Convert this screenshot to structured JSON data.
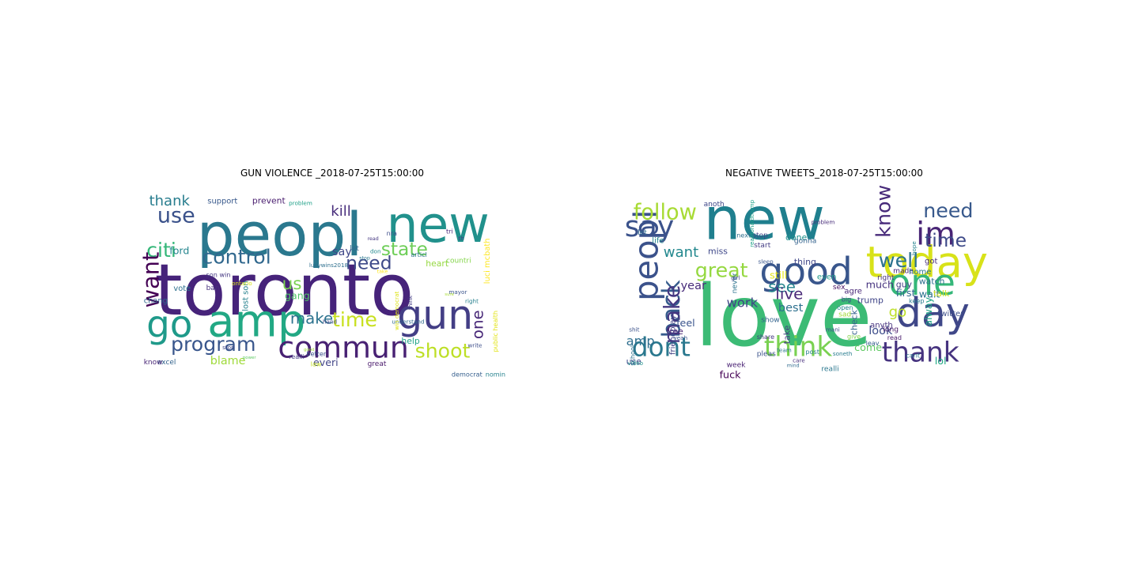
{
  "panels": [
    {
      "title": "GUN VIOLENCE _2018-07-25T15:00:00",
      "words": [
        {
          "text": "toronto",
          "color": "#46237a"
        },
        {
          "text": "peopl",
          "color": "#2a788e"
        },
        {
          "text": "new",
          "color": "#21918c"
        },
        {
          "text": "amp",
          "color": "#22a884"
        },
        {
          "text": "go",
          "color": "#1f9a8a"
        },
        {
          "text": "gun",
          "color": "#433e85"
        },
        {
          "text": "commun",
          "color": "#482173"
        },
        {
          "text": "control",
          "color": "#31688e"
        },
        {
          "text": "program",
          "color": "#39568c"
        },
        {
          "text": "shoot",
          "color": "#bddf26"
        },
        {
          "text": "state",
          "color": "#6ece58"
        },
        {
          "text": "citi",
          "color": "#35b779"
        },
        {
          "text": "time",
          "color": "#c8e020"
        },
        {
          "text": "need",
          "color": "#3e4a89"
        },
        {
          "text": "make",
          "color": "#2c728e"
        },
        {
          "text": "want",
          "color": "#440154"
        },
        {
          "text": "use",
          "color": "#3b528b"
        },
        {
          "text": "thank",
          "color": "#287d8e"
        },
        {
          "text": "us",
          "color": "#7ad151"
        },
        {
          "text": "one",
          "color": "#482878"
        },
        {
          "text": "kill",
          "color": "#472d7b"
        },
        {
          "text": "ford",
          "color": "#25858e"
        },
        {
          "text": "blame",
          "color": "#9fda3a"
        },
        {
          "text": "say",
          "color": "#3f4788"
        },
        {
          "text": "heart",
          "color": "#95d840"
        },
        {
          "text": "help",
          "color": "#20a386"
        },
        {
          "text": "everi",
          "color": "#414487"
        },
        {
          "text": "gang",
          "color": "#52c569"
        },
        {
          "text": "support",
          "color": "#38598c"
        },
        {
          "text": "prevent",
          "color": "#481c6e"
        },
        {
          "text": "chang",
          "color": "#31688e"
        },
        {
          "text": "vote",
          "color": "#2d708e"
        },
        {
          "text": "lost son",
          "color": "#26828e"
        },
        {
          "text": "luci mcbath",
          "color": "#fde725"
        },
        {
          "text": "mayor",
          "color": "#3a548c"
        },
        {
          "text": "countri",
          "color": "#84d44b"
        },
        {
          "text": "tri",
          "color": "#472a7a"
        },
        {
          "text": "nra",
          "color": "#3d4e8a"
        },
        {
          "text": "th",
          "color": "#404588"
        },
        {
          "text": "lucywins2018",
          "color": "#2e6f8e"
        },
        {
          "text": "problem",
          "color": "#1fa088"
        },
        {
          "text": "stop",
          "color": "#2a778e"
        },
        {
          "text": "read",
          "color": "#453781"
        },
        {
          "text": "think",
          "color": "#433d84"
        },
        {
          "text": "sure",
          "color": "#a8db34"
        },
        {
          "text": "understand",
          "color": "#2f6b8e"
        },
        {
          "text": "right",
          "color": "#27808e"
        },
        {
          "text": "write",
          "color": "#3d4d8a"
        },
        {
          "text": "great",
          "color": "#48186a"
        },
        {
          "text": "law",
          "color": "#c2df23"
        },
        {
          "text": "excel",
          "color": "#33638d"
        },
        {
          "text": "know",
          "color": "#482576"
        },
        {
          "text": "better",
          "color": "#3b518b"
        },
        {
          "text": "realli",
          "color": "#443983"
        },
        {
          "text": "democrat",
          "color": "#355f8d"
        },
        {
          "text": "nomin",
          "color": "#26828e"
        },
        {
          "text": "ban",
          "color": "#46327e"
        },
        {
          "text": "son win",
          "color": "#453882"
        },
        {
          "text": "take",
          "color": "#fde725"
        },
        {
          "text": "articl",
          "color": "#2b748e"
        },
        {
          "text": "stori",
          "color": "#3f4889"
        },
        {
          "text": "hand",
          "color": "#404688"
        },
        {
          "text": "don",
          "color": "#23898e"
        },
        {
          "text": "let",
          "color": "#31688e"
        },
        {
          "text": "public health",
          "color": "#e2e418"
        },
        {
          "text": "good",
          "color": "#a0da39"
        },
        {
          "text": "power",
          "color": "#5ec962"
        },
        {
          "text": "win democrat",
          "color": "#dde318"
        },
        {
          "text": "ontario",
          "color": "#d8e219"
        }
      ]
    },
    {
      "title": "NEGATIVE TWEETS_2018-07-25T15:00:00",
      "words": [
        {
          "text": "love",
          "color": "#3cbb75"
        },
        {
          "text": "new",
          "color": "#1f7f8e"
        },
        {
          "text": "today",
          "color": "#d8e219"
        },
        {
          "text": "day",
          "color": "#3f4788"
        },
        {
          "text": "one",
          "color": "#35b779"
        },
        {
          "text": "good",
          "color": "#39568c"
        },
        {
          "text": "think",
          "color": "#7ad151"
        },
        {
          "text": "thank",
          "color": "#46337f"
        },
        {
          "text": "dont",
          "color": "#2a788e"
        },
        {
          "text": "peopl",
          "color": "#3b528b"
        },
        {
          "text": "say",
          "color": "#3b528b"
        },
        {
          "text": "im",
          "color": "#482475"
        },
        {
          "text": "back",
          "color": "#365c8d"
        },
        {
          "text": "great",
          "color": "#95d840"
        },
        {
          "text": "make",
          "color": "#453781"
        },
        {
          "text": "follow",
          "color": "#a8db34"
        },
        {
          "text": "need",
          "color": "#38598c"
        },
        {
          "text": "time",
          "color": "#3e4a89"
        },
        {
          "text": "know",
          "color": "#472a7a"
        },
        {
          "text": "well",
          "color": "#2c728e"
        },
        {
          "text": "see",
          "color": "#25858e"
        },
        {
          "text": "amp",
          "color": "#2e6e8e"
        },
        {
          "text": "live",
          "color": "#482878"
        },
        {
          "text": "go",
          "color": "#bddf26"
        },
        {
          "text": "want",
          "color": "#23888e"
        },
        {
          "text": "year",
          "color": "#472c7a"
        },
        {
          "text": "work",
          "color": "#414487"
        },
        {
          "text": "best",
          "color": "#2d708e"
        },
        {
          "text": "look",
          "color": "#3d4d8a"
        },
        {
          "text": "come",
          "color": "#5ec962"
        },
        {
          "text": "alway",
          "color": "#20a386"
        },
        {
          "text": "wait",
          "color": "#2c728e"
        },
        {
          "text": "first",
          "color": "#31688e"
        },
        {
          "text": "lol",
          "color": "#22a884"
        },
        {
          "text": "fuck",
          "color": "#440154"
        },
        {
          "text": "feel",
          "color": "#3a548c"
        },
        {
          "text": "much",
          "color": "#46337f"
        },
        {
          "text": "trump",
          "color": "#404588"
        },
        {
          "text": "still",
          "color": "#e2e418"
        },
        {
          "text": "use",
          "color": "#3e4989"
        },
        {
          "text": "free",
          "color": "#482071"
        },
        {
          "text": "friendplay",
          "color": "#424186"
        },
        {
          "text": "miss",
          "color": "#3f4889"
        },
        {
          "text": "life",
          "color": "#24878e"
        },
        {
          "text": "let",
          "color": "#2f6c8e"
        },
        {
          "text": "thing",
          "color": "#404688"
        },
        {
          "text": "right",
          "color": "#46307e"
        },
        {
          "text": "guy",
          "color": "#433e85"
        },
        {
          "text": "watch",
          "color": "#2e6f8e"
        },
        {
          "text": "check",
          "color": "#34608d"
        },
        {
          "text": "take",
          "color": "#443983"
        },
        {
          "text": "even",
          "color": "#1f998a"
        },
        {
          "text": "sex",
          "color": "#471063"
        },
        {
          "text": "sad",
          "color": "#a0da39"
        },
        {
          "text": "show",
          "color": "#33638d"
        },
        {
          "text": "pleas",
          "color": "#3b528b"
        },
        {
          "text": "give",
          "color": "#84d44b"
        },
        {
          "text": "anyth",
          "color": "#46327e"
        },
        {
          "text": "read",
          "color": "#48186a"
        },
        {
          "text": "realli",
          "color": "#2a778e"
        },
        {
          "text": "keep",
          "color": "#29798e"
        },
        {
          "text": "made",
          "color": "#482576"
        },
        {
          "text": "got",
          "color": "#472d7b"
        },
        {
          "text": "home",
          "color": "#2b748e"
        },
        {
          "text": "hope",
          "color": "#26828e"
        },
        {
          "text": "talk",
          "color": "#d2e21b"
        },
        {
          "text": "twitter",
          "color": "#3d4e8a"
        },
        {
          "text": "video",
          "color": "#21918c"
        },
        {
          "text": "week",
          "color": "#482173"
        },
        {
          "text": "never",
          "color": "#2c738e"
        },
        {
          "text": "yeah",
          "color": "#3a538b"
        },
        {
          "text": "start",
          "color": "#433d84"
        },
        {
          "text": "stop",
          "color": "#404588"
        },
        {
          "text": "next",
          "color": "#2d708e"
        },
        {
          "text": "share",
          "color": "#453882"
        },
        {
          "text": "team",
          "color": "#2a768e"
        },
        {
          "text": "post",
          "color": "#27808e"
        },
        {
          "text": "care",
          "color": "#472f7d"
        },
        {
          "text": "mani",
          "color": "#3c4f8a"
        },
        {
          "text": "long",
          "color": "#481467"
        },
        {
          "text": "cant",
          "color": "#2b758e"
        },
        {
          "text": "leav",
          "color": "#355e8d"
        },
        {
          "text": "open",
          "color": "#26818e"
        },
        {
          "text": "big",
          "color": "#3e4c8a"
        },
        {
          "text": "mind",
          "color": "#2f6b8e"
        },
        {
          "text": "done",
          "color": "#21918c"
        },
        {
          "text": "sleep",
          "color": "#39558c"
        },
        {
          "text": "shit",
          "color": "#3b518b"
        },
        {
          "text": "school",
          "color": "#2d718e"
        },
        {
          "text": "girl",
          "color": "#404387"
        },
        {
          "text": "gonna",
          "color": "#33628d"
        },
        {
          "text": "realdonaldtrump",
          "color": "#1fa188"
        },
        {
          "text": "problem",
          "color": "#472c7a"
        },
        {
          "text": "anoth",
          "color": "#3f4788"
        },
        {
          "text": "agre",
          "color": "#482677"
        },
        {
          "text": "soneth",
          "color": "#287c8e"
        },
        {
          "text": "stay",
          "color": "#2e6d8e"
        }
      ]
    }
  ]
}
